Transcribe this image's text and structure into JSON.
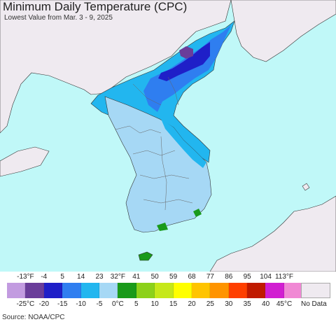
{
  "title": "Minimum Daily Temperature (CPC)",
  "subtitle": "Lowest Value from Mar. 3 - 9, 2025",
  "source": "Source: NOAA/CPC",
  "legend": {
    "fahrenheit_ticks": [
      "-13°F",
      "-4",
      "5",
      "14",
      "23",
      "32°F",
      "41",
      "50",
      "59",
      "68",
      "77",
      "86",
      "95",
      "104",
      "113°F"
    ],
    "celsius_ticks": [
      "-25°C",
      "-20",
      "-15",
      "-10",
      "-5",
      "0°C",
      "5",
      "10",
      "15",
      "20",
      "25",
      "30",
      "35",
      "40",
      "45°C"
    ],
    "colors": [
      "#c29be0",
      "#6a3d9a",
      "#1f1fc8",
      "#2f7ef0",
      "#22b6ef",
      "#a6d8f5",
      "#1a9a1a",
      "#8cd11a",
      "#c6e81a",
      "#ffff00",
      "#ffc400",
      "#ff9400",
      "#ff3f00",
      "#c01a00",
      "#d11ed1",
      "#f088d4"
    ],
    "no_data_label": "No Data",
    "no_data_color": "#efeaf0"
  },
  "map_colors": {
    "ocean": "#c0f8f8",
    "land_nodata": "#efeaf0",
    "lightblue": "#a6d8f5",
    "cyan": "#22b6ef",
    "blue": "#2f7ef0",
    "darkblue": "#1f1fc8",
    "purple": "#6a3d9a",
    "green": "#1a9a1a"
  }
}
